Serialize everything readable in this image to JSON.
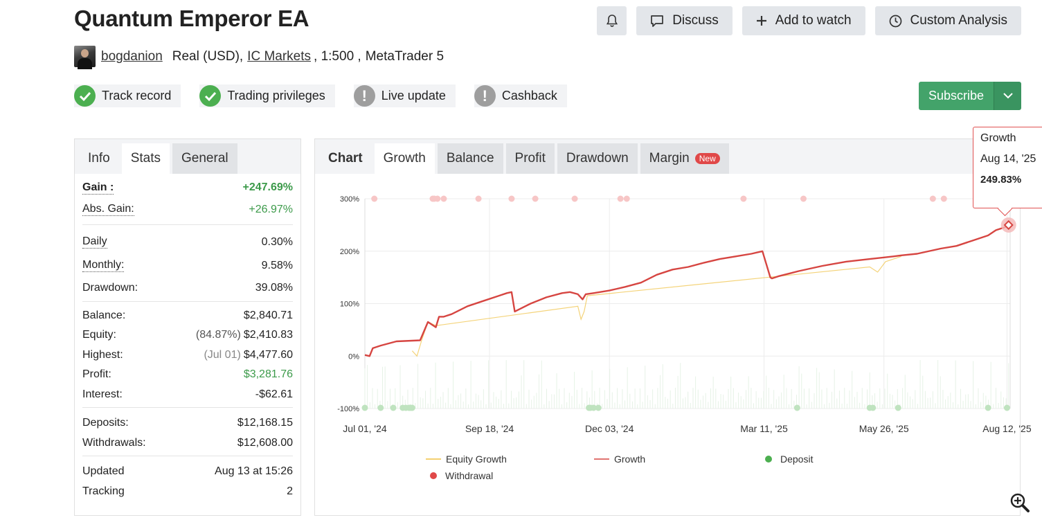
{
  "header": {
    "title": "Quantum Emperor EA",
    "discuss_label": "Discuss",
    "watch_label": "Add to watch",
    "analysis_label": "Custom Analysis",
    "bell_icon": "bell-icon"
  },
  "account": {
    "author": "bogdanion",
    "type": "Real (USD),",
    "broker": "IC Markets",
    "leverage": ", 1:500 ,",
    "platform": "MetaTrader 5"
  },
  "badges": [
    {
      "label": "Track record",
      "status": "ok"
    },
    {
      "label": "Trading privileges",
      "status": "ok"
    },
    {
      "label": "Live update",
      "status": "warn"
    },
    {
      "label": "Cashback",
      "status": "warn"
    }
  ],
  "subscribe_label": "Subscribe",
  "left_tabs": [
    "Info",
    "Stats",
    "General"
  ],
  "stats": {
    "gain_label": "Gain :",
    "gain": "+247.69%",
    "abs_gain_label": "Abs. Gain:",
    "abs_gain": "+26.97%",
    "daily_label": "Daily",
    "daily": "0.30%",
    "monthly_label": "Monthly:",
    "monthly": "9.58%",
    "drawdown_label": "Drawdown:",
    "drawdown": "39.08%",
    "balance_label": "Balance:",
    "balance": "$2,840.71",
    "equity_label": "Equity:",
    "equity_pct": "(84.87%)",
    "equity": "$2,410.83",
    "highest_label": "Highest:",
    "highest_date": "(Jul 01)",
    "highest": "$4,477.60",
    "profit_label": "Profit:",
    "profit": "$3,281.76",
    "interest_label": "Interest:",
    "interest": "-$62.61",
    "deposits_label": "Deposits:",
    "deposits": "$12,168.15",
    "withdrawals_label": "Withdrawals:",
    "withdrawals": "$12,608.00",
    "updated_label": "Updated",
    "updated": "Aug 13 at 15:26",
    "tracking_label": "Tracking",
    "tracking": "2"
  },
  "chart_tabs": [
    "Chart",
    "Growth",
    "Balance",
    "Profit",
    "Drawdown",
    "Margin"
  ],
  "new_badge": "New",
  "tooltip": {
    "series": "Growth",
    "date": "Aug 14, '25",
    "value": "249.83%"
  },
  "colors": {
    "growth": "#d64541",
    "equity": "#f0c040",
    "deposit": "#4caf50",
    "withdrawal": "#e04848",
    "accent_green": "#43a36a"
  },
  "chart_data": {
    "type": "line",
    "yticks": [
      "300%",
      "200%",
      "100%",
      "0%",
      "-100%"
    ],
    "ylim": [
      -100,
      300
    ],
    "xticks": [
      "Jul 01, '24",
      "Sep 18, '24",
      "Dec 03, '24",
      "Mar 11, '25",
      "May 26, '25",
      "Aug 12, '25"
    ],
    "xtick_days": [
      0,
      79,
      155,
      253,
      329,
      407
    ],
    "x_range_days": [
      0,
      409
    ],
    "legend": [
      "Equity Growth",
      "Growth",
      "Deposit",
      "Withdrawal"
    ],
    "series": [
      {
        "name": "Growth",
        "x_days": [
          0,
          3,
          5,
          10,
          20,
          35,
          40,
          45,
          47,
          50,
          55,
          65,
          75,
          85,
          90,
          93,
          95,
          105,
          115,
          125,
          130,
          135,
          138,
          140,
          145,
          155,
          165,
          175,
          185,
          195,
          205,
          215,
          225,
          235,
          245,
          252,
          257,
          258,
          262,
          275,
          290,
          305,
          320,
          335,
          340,
          350,
          365,
          375,
          385,
          395,
          400,
          405,
          409
        ],
        "values": [
          2,
          0,
          15,
          20,
          28,
          30,
          65,
          55,
          75,
          75,
          80,
          95,
          105,
          115,
          120,
          122,
          85,
          100,
          112,
          120,
          122,
          118,
          108,
          118,
          120,
          125,
          132,
          140,
          155,
          165,
          170,
          178,
          185,
          190,
          195,
          200,
          150,
          148,
          152,
          162,
          172,
          180,
          185,
          190,
          192,
          195,
          205,
          210,
          220,
          230,
          240,
          245,
          250
        ]
      },
      {
        "name": "Equity Growth",
        "x_days": [
          30,
          33,
          36,
          40,
          45,
          135,
          137,
          139,
          141,
          320,
          325,
          330,
          340
        ],
        "values": [
          10,
          0,
          30,
          65,
          58,
          95,
          70,
          85,
          115,
          170,
          160,
          180,
          190
        ]
      }
    ],
    "tooltip_point": {
      "x_day": 408,
      "value": 249.83
    },
    "withdrawal_days": [
      6,
      43,
      44,
      46,
      50,
      72,
      93,
      108,
      133,
      162,
      166,
      240,
      278,
      360,
      367,
      404
    ],
    "deposit_days": [
      0,
      10,
      18,
      24,
      26,
      28,
      29,
      30,
      142,
      143,
      145,
      148,
      274,
      320,
      322,
      338,
      395,
      407
    ]
  }
}
